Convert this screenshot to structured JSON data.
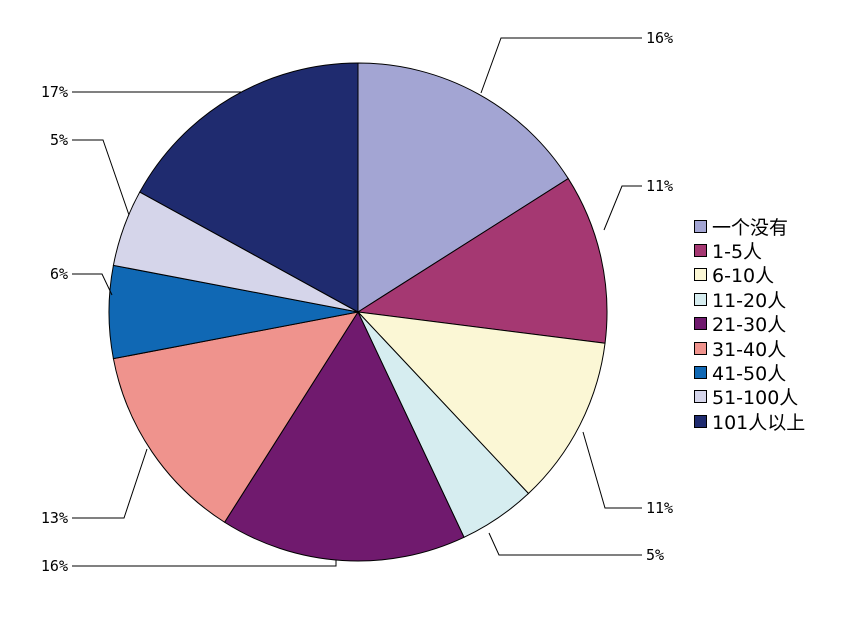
{
  "chart_data": {
    "type": "pie",
    "title": "",
    "slices": [
      {
        "label": "一个没有",
        "value": 16,
        "value_label": "16%",
        "color": "#a3a5d3"
      },
      {
        "label": "1-5人",
        "value": 11,
        "value_label": "11%",
        "color": "#a53872"
      },
      {
        "label": "6-10人",
        "value": 11,
        "value_label": "11%",
        "color": "#fbf7d5"
      },
      {
        "label": "11-20人",
        "value": 5,
        "value_label": "5%",
        "color": "#d6edf0"
      },
      {
        "label": "21-30人",
        "value": 16,
        "value_label": "16%",
        "color": "#701a6e"
      },
      {
        "label": "31-40人",
        "value": 13,
        "value_label": "13%",
        "color": "#ef938d"
      },
      {
        "label": "41-50人",
        "value": 6,
        "value_label": "6%",
        "color": "#1068b4"
      },
      {
        "label": "51-100人",
        "value": 5,
        "value_label": "5%",
        "color": "#d5d5ea"
      },
      {
        "label": "101人以上",
        "value": 17,
        "value_label": "17%",
        "color": "#1f2b6f"
      }
    ],
    "legend_position": "right"
  }
}
